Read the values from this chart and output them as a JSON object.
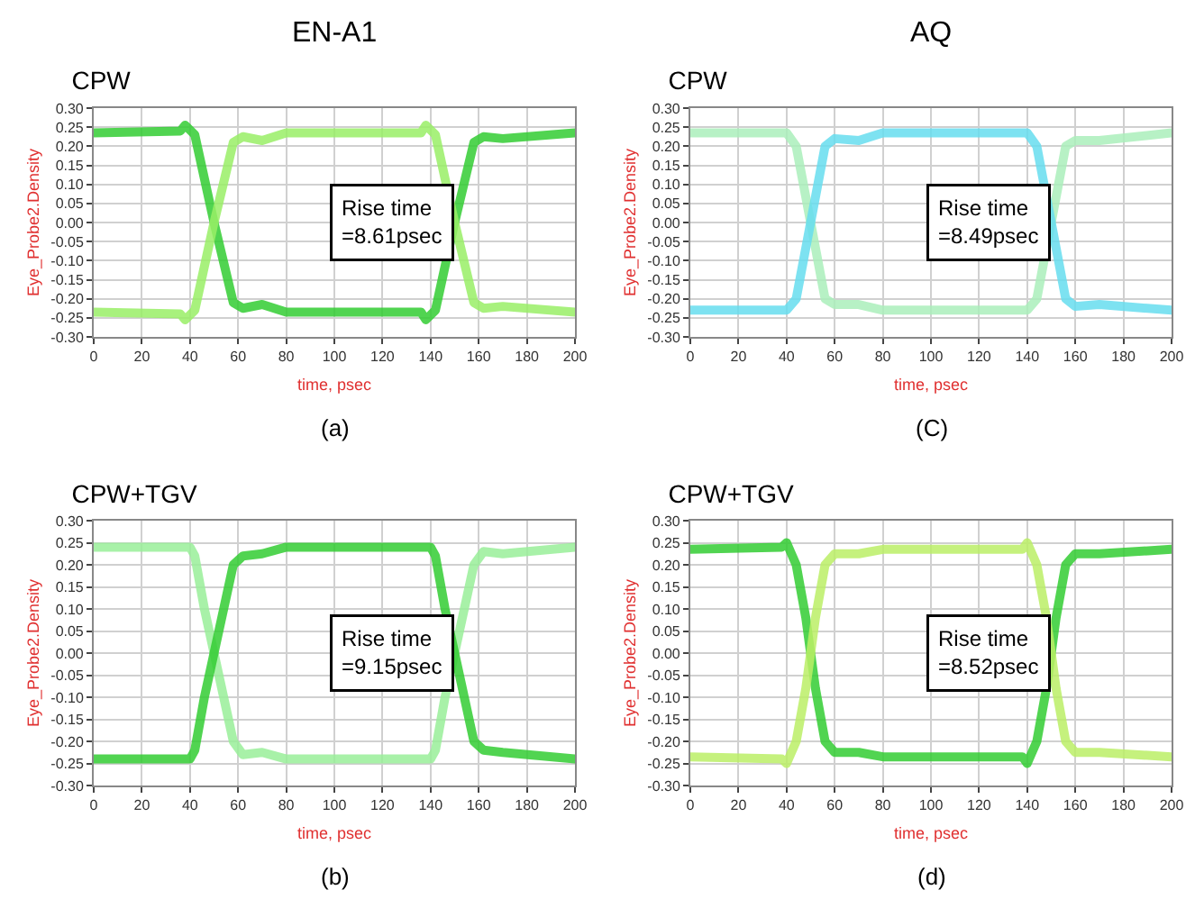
{
  "chart_data": [
    {
      "type": "line",
      "title": "CPW",
      "xlabel": "time, psec",
      "ylabel": "Eye_Probe2.Density",
      "annotations": [
        "EN-A1",
        "(a)",
        "Rise time\n=8.61psec"
      ],
      "grid": true,
      "marker": "none",
      "line_style": "solid",
      "xlim": [
        0,
        200
      ],
      "xticks": [
        0,
        20,
        40,
        60,
        80,
        100,
        120,
        140,
        160,
        180,
        200
      ],
      "ylim": [
        -0.3,
        0.3
      ],
      "yticks": [
        {
          "value": 0.3,
          "label": "0.30"
        },
        {
          "value": 0.25,
          "label": "0.25"
        },
        {
          "value": 0.2,
          "label": "0.20"
        },
        {
          "value": 0.15,
          "label": "0.15"
        },
        {
          "value": 0.1,
          "label": "0.10"
        },
        {
          "value": 0.05,
          "label": "0.05"
        },
        {
          "value": 0,
          "label": "0.00"
        },
        {
          "value": -0.05,
          "label": "-0.05"
        },
        {
          "value": -0.1,
          "label": "-0.10"
        },
        {
          "value": -0.15,
          "label": "-0.15"
        },
        {
          "value": -0.2,
          "label": "-0.20"
        },
        {
          "value": -0.25,
          "label": "-0.25"
        },
        {
          "value": -0.3,
          "label": "-0.30"
        }
      ],
      "series": [
        {
          "color": "#33cc33",
          "x": [
            0,
            36,
            38,
            42,
            50,
            58,
            62,
            70,
            80,
            136,
            138,
            142,
            150,
            158,
            162,
            170,
            200
          ],
          "values": [
            0.235,
            0.24,
            0.255,
            0.23,
            0,
            -0.21,
            -0.225,
            -0.215,
            -0.235,
            -0.235,
            -0.255,
            -0.23,
            0,
            0.21,
            0.225,
            0.22,
            0.235
          ]
        },
        {
          "color": "#99ee66",
          "x": [
            0,
            36,
            38,
            42,
            50,
            58,
            62,
            70,
            80,
            136,
            138,
            142,
            150,
            158,
            162,
            170,
            200
          ],
          "values": [
            -0.235,
            -0.24,
            -0.255,
            -0.23,
            0,
            0.21,
            0.225,
            0.215,
            0.235,
            0.235,
            0.255,
            0.23,
            0,
            -0.21,
            -0.225,
            -0.22,
            -0.235
          ]
        }
      ]
    },
    {
      "type": "line",
      "title": "CPW",
      "xlabel": "time, psec",
      "ylabel": "Eye_Probe2.Density",
      "annotations": [
        "AQ",
        "(C)",
        "Rise time\n=8.49psec"
      ],
      "grid": true,
      "marker": "none",
      "line_style": "solid",
      "xlim": [
        0,
        200
      ],
      "xticks": [
        0,
        20,
        40,
        60,
        80,
        100,
        120,
        140,
        160,
        180,
        200
      ],
      "ylim": [
        -0.3,
        0.3
      ],
      "yticks": [
        {
          "value": 0.3,
          "label": "0.30"
        },
        {
          "value": 0.25,
          "label": "0.25"
        },
        {
          "value": 0.2,
          "label": "0.20"
        },
        {
          "value": 0.15,
          "label": "0.15"
        },
        {
          "value": 0.1,
          "label": "0.10"
        },
        {
          "value": 0.05,
          "label": "0.05"
        },
        {
          "value": 0,
          "label": "0.00"
        },
        {
          "value": -0.05,
          "label": "-0.05"
        },
        {
          "value": -0.1,
          "label": "-0.10"
        },
        {
          "value": -0.15,
          "label": "-0.15"
        },
        {
          "value": -0.2,
          "label": "-0.20"
        },
        {
          "value": -0.25,
          "label": "-0.25"
        },
        {
          "value": -0.3,
          "label": "-0.30"
        }
      ],
      "series": [
        {
          "color": "#aaeebb",
          "x": [
            0,
            38,
            40,
            44,
            50,
            56,
            60,
            70,
            80,
            138,
            140,
            144,
            150,
            156,
            160,
            170,
            200
          ],
          "values": [
            0.235,
            0.235,
            0.235,
            0.2,
            0,
            -0.2,
            -0.215,
            -0.215,
            -0.23,
            -0.23,
            -0.23,
            -0.2,
            0,
            0.2,
            0.215,
            0.215,
            0.235
          ]
        },
        {
          "color": "#66ddee",
          "x": [
            0,
            38,
            40,
            44,
            50,
            56,
            60,
            70,
            80,
            138,
            140,
            144,
            150,
            156,
            160,
            170,
            200
          ],
          "values": [
            -0.23,
            -0.23,
            -0.23,
            -0.2,
            0,
            0.2,
            0.22,
            0.215,
            0.235,
            0.235,
            0.235,
            0.2,
            0,
            -0.2,
            -0.22,
            -0.215,
            -0.23
          ]
        }
      ]
    },
    {
      "type": "line",
      "title": "CPW+TGV",
      "xlabel": "time, psec",
      "ylabel": "Eye_Probe2.Density",
      "annotations": [
        "(b)",
        "Rise time\n=9.15psec"
      ],
      "grid": true,
      "marker": "none",
      "line_style": "solid",
      "xlim": [
        0,
        200
      ],
      "xticks": [
        0,
        20,
        40,
        60,
        80,
        100,
        120,
        140,
        160,
        180,
        200
      ],
      "ylim": [
        -0.3,
        0.3
      ],
      "yticks": [
        {
          "value": 0.3,
          "label": "0.30"
        },
        {
          "value": 0.25,
          "label": "0.25"
        },
        {
          "value": 0.2,
          "label": "0.20"
        },
        {
          "value": 0.15,
          "label": "0.15"
        },
        {
          "value": 0.1,
          "label": "0.10"
        },
        {
          "value": 0.05,
          "label": "0.05"
        },
        {
          "value": 0,
          "label": "0.00"
        },
        {
          "value": -0.05,
          "label": "-0.05"
        },
        {
          "value": -0.1,
          "label": "-0.10"
        },
        {
          "value": -0.15,
          "label": "-0.15"
        },
        {
          "value": -0.2,
          "label": "-0.20"
        },
        {
          "value": -0.25,
          "label": "-0.25"
        },
        {
          "value": -0.3,
          "label": "-0.30"
        }
      ],
      "series": [
        {
          "color": "#99ee99",
          "x": [
            0,
            40,
            42,
            46,
            50,
            54,
            58,
            62,
            70,
            80,
            140,
            142,
            146,
            150,
            154,
            158,
            162,
            170,
            200
          ],
          "values": [
            0.24,
            0.24,
            0.22,
            0.1,
            0,
            -0.1,
            -0.2,
            -0.23,
            -0.225,
            -0.24,
            -0.24,
            -0.22,
            -0.1,
            0,
            0.1,
            0.2,
            0.23,
            0.225,
            0.24
          ]
        },
        {
          "color": "#33cc33",
          "x": [
            0,
            40,
            42,
            46,
            50,
            54,
            58,
            62,
            70,
            80,
            140,
            142,
            146,
            150,
            154,
            158,
            162,
            170,
            200
          ],
          "values": [
            -0.24,
            -0.24,
            -0.22,
            -0.1,
            0,
            0.1,
            0.2,
            0.22,
            0.225,
            0.24,
            0.24,
            0.22,
            0.1,
            0,
            -0.1,
            -0.2,
            -0.22,
            -0.225,
            -0.24
          ]
        }
      ]
    },
    {
      "type": "line",
      "title": "CPW+TGV",
      "xlabel": "time, psec",
      "ylabel": "Eye_Probe2.Density",
      "annotations": [
        "(d)",
        "Rise time\n=8.52psec"
      ],
      "grid": true,
      "marker": "none",
      "line_style": "solid",
      "xlim": [
        0,
        200
      ],
      "xticks": [
        0,
        20,
        40,
        60,
        80,
        100,
        120,
        140,
        160,
        180,
        200
      ],
      "ylim": [
        -0.3,
        0.3
      ],
      "yticks": [
        {
          "value": 0.3,
          "label": "0.30"
        },
        {
          "value": 0.25,
          "label": "0.25"
        },
        {
          "value": 0.2,
          "label": "0.20"
        },
        {
          "value": 0.15,
          "label": "0.15"
        },
        {
          "value": 0.1,
          "label": "0.10"
        },
        {
          "value": 0.05,
          "label": "0.05"
        },
        {
          "value": 0,
          "label": "0.00"
        },
        {
          "value": -0.05,
          "label": "-0.05"
        },
        {
          "value": -0.1,
          "label": "-0.10"
        },
        {
          "value": -0.15,
          "label": "-0.15"
        },
        {
          "value": -0.2,
          "label": "-0.20"
        },
        {
          "value": -0.25,
          "label": "-0.25"
        },
        {
          "value": -0.3,
          "label": "-0.30"
        }
      ],
      "series": [
        {
          "color": "#33cc33",
          "x": [
            0,
            38,
            40,
            44,
            48,
            50,
            52,
            56,
            60,
            70,
            80,
            138,
            140,
            144,
            148,
            150,
            152,
            156,
            160,
            170,
            200
          ],
          "values": [
            0.235,
            0.24,
            0.25,
            0.2,
            0.08,
            0,
            -0.08,
            -0.2,
            -0.225,
            -0.225,
            -0.235,
            -0.235,
            -0.25,
            -0.2,
            -0.08,
            0,
            0.08,
            0.2,
            0.225,
            0.225,
            0.235
          ]
        },
        {
          "color": "#bbee66",
          "x": [
            0,
            38,
            40,
            44,
            48,
            50,
            52,
            56,
            60,
            70,
            80,
            138,
            140,
            144,
            148,
            150,
            152,
            156,
            160,
            170,
            200
          ],
          "values": [
            -0.235,
            -0.24,
            -0.25,
            -0.2,
            -0.08,
            0,
            0.08,
            0.2,
            0.225,
            0.225,
            0.235,
            0.235,
            0.25,
            0.2,
            0.08,
            0,
            -0.08,
            -0.2,
            -0.225,
            -0.225,
            -0.235
          ]
        }
      ]
    }
  ]
}
